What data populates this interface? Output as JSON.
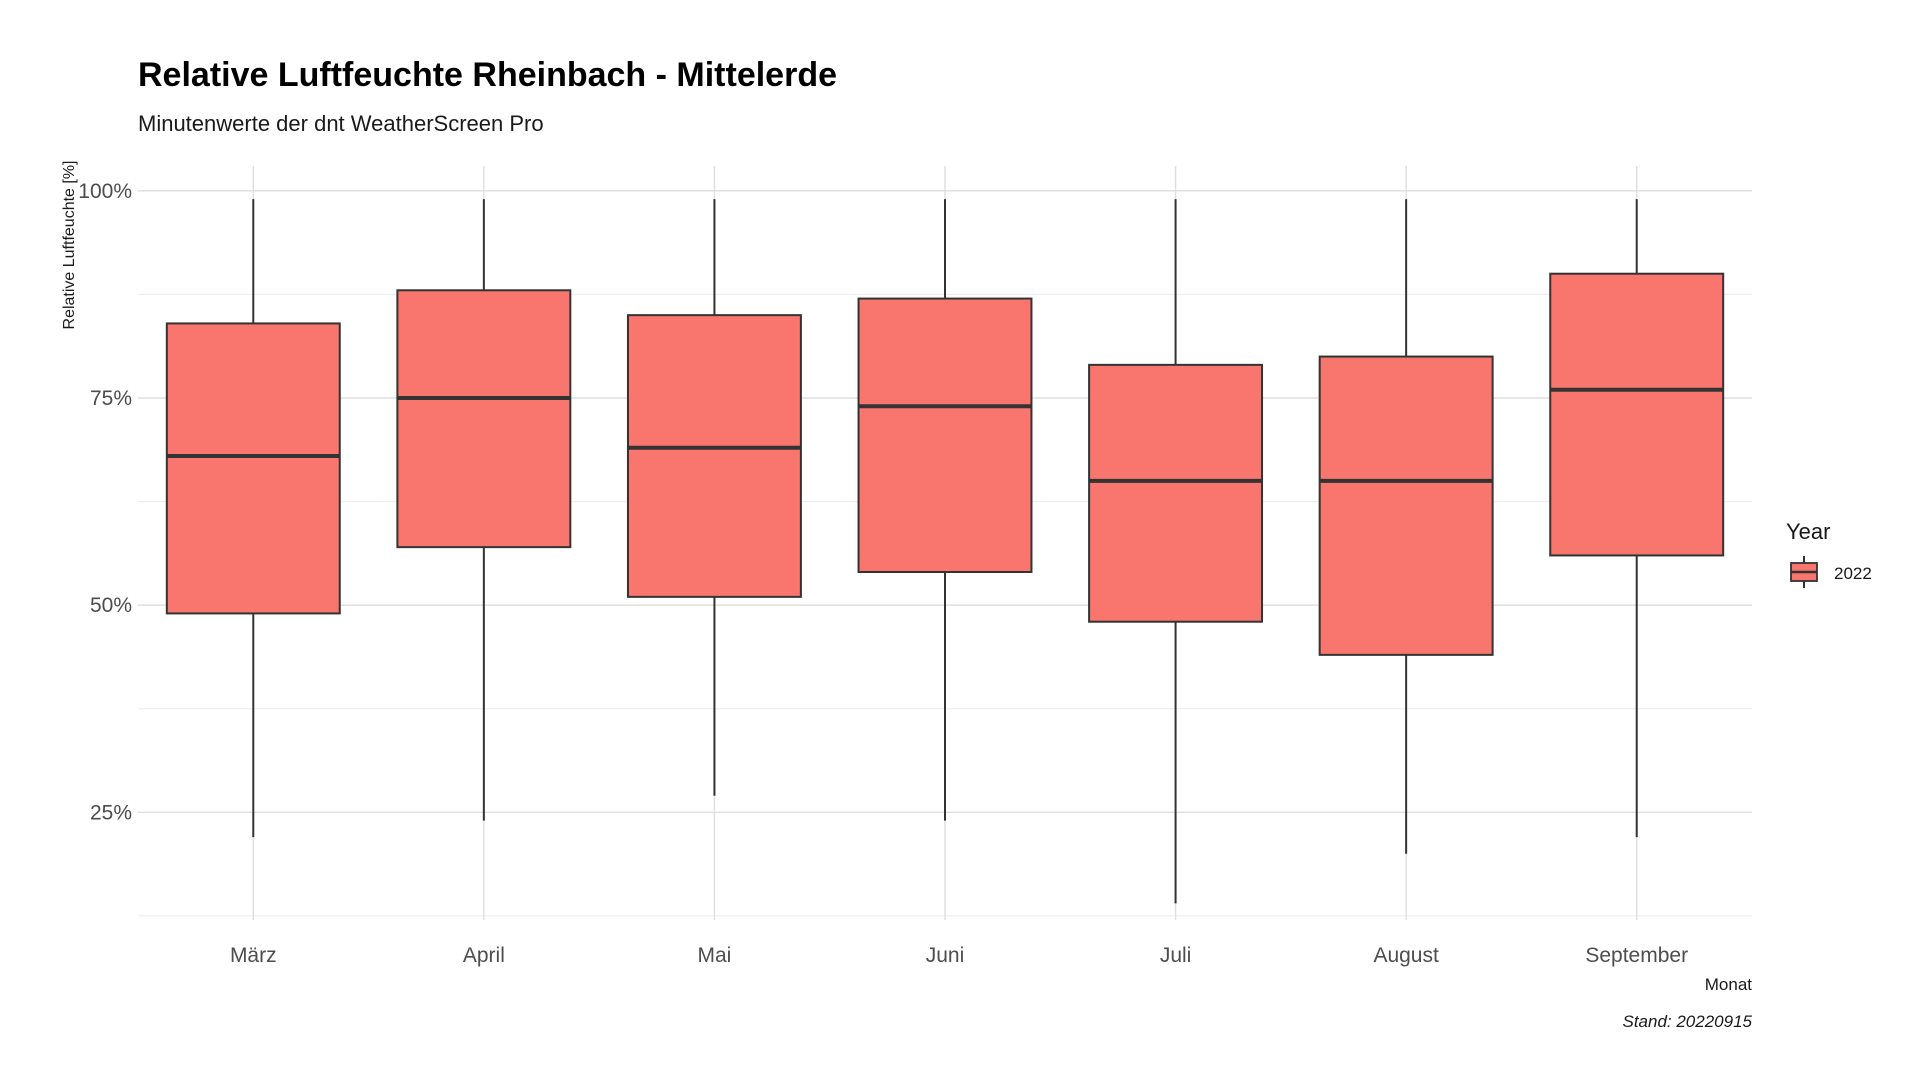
{
  "chart_data": {
    "type": "boxplot",
    "title": "Relative Luftfeuchte Rheinbach - Mittelerde",
    "subtitle": "Minutenwerte der dnt WeatherScreen Pro",
    "xlabel": "Monat",
    "ylabel": "Relative Luftfeuchte [%]",
    "caption": "Stand: 20220915",
    "ylim": [
      12,
      103
    ],
    "y_ticks": [
      25,
      50,
      75,
      100
    ],
    "y_tick_labels": [
      "25%",
      "50%",
      "75%",
      "100%"
    ],
    "grid": true,
    "legend": {
      "title": "Year",
      "position": "right",
      "entries": [
        "2022"
      ]
    },
    "fill_color": "#F8766D",
    "line_color": "#333333",
    "categories": [
      "März",
      "April",
      "Mai",
      "Juni",
      "Juli",
      "August",
      "September"
    ],
    "series": [
      {
        "name": "2022",
        "boxes": [
          {
            "min": 22,
            "q1": 49,
            "median": 68,
            "q3": 84,
            "max": 99
          },
          {
            "min": 24,
            "q1": 57,
            "median": 75,
            "q3": 88,
            "max": 99
          },
          {
            "min": 27,
            "q1": 51,
            "median": 69,
            "q3": 85,
            "max": 99
          },
          {
            "min": 24,
            "q1": 54,
            "median": 74,
            "q3": 87,
            "max": 99
          },
          {
            "min": 14,
            "q1": 48,
            "median": 65,
            "q3": 79,
            "max": 99
          },
          {
            "min": 20,
            "q1": 44,
            "median": 65,
            "q3": 80,
            "max": 99
          },
          {
            "min": 22,
            "q1": 56,
            "median": 76,
            "q3": 90,
            "max": 99
          }
        ]
      }
    ]
  }
}
